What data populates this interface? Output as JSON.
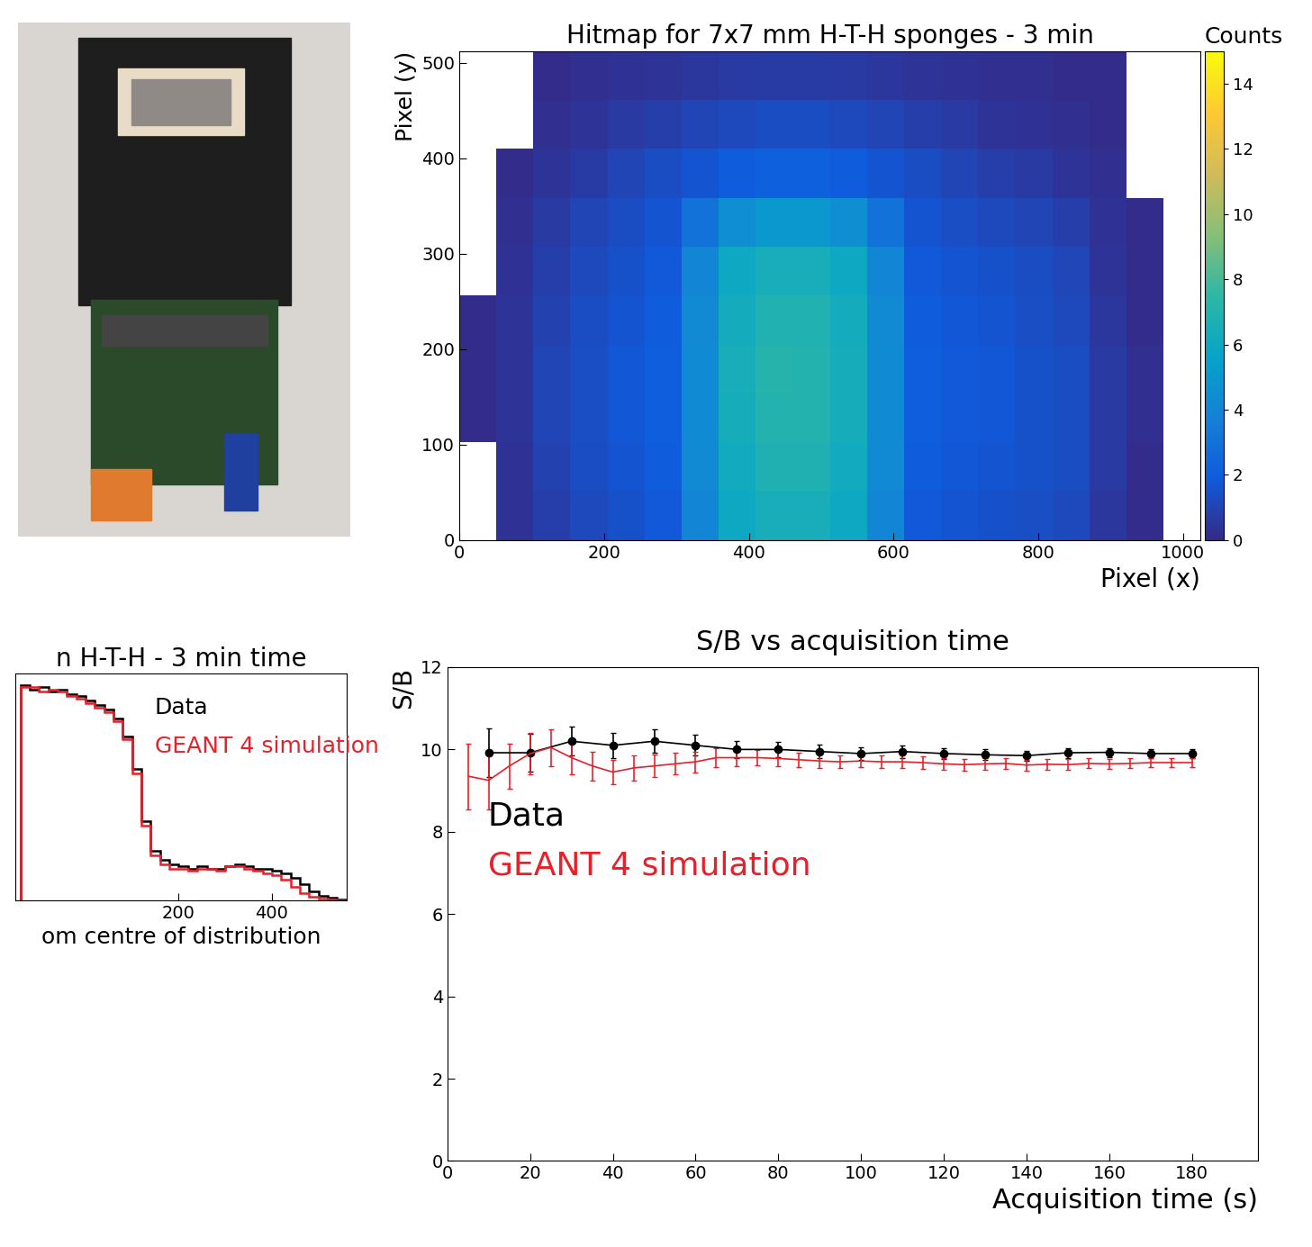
{
  "chart_data": [
    {
      "type": "heatmap",
      "title": "Hitmap for 7x7 mm H-T-H sponges - 3 min",
      "x_label": "Pixel (x)",
      "y_label": "Pixel (y)",
      "xbins": [
        0,
        51.2,
        102.4,
        153.6,
        204.8,
        256,
        307.2,
        358.4,
        409.6,
        460.8,
        512,
        563.2,
        614.4,
        665.6,
        716.8,
        768,
        819.2,
        870.4,
        921.6,
        972.8,
        1024
      ],
      "ybins": [
        0,
        51.2,
        102.4,
        153.6,
        204.8,
        256,
        307.2,
        358.4,
        409.6,
        460.8,
        512
      ],
      "cells": [
        [
          0,
          0.3,
          0.8,
          1.2,
          1.5,
          1.8,
          4.0,
          6.0,
          6.5,
          6.5,
          6.0,
          4.0,
          1.8,
          1.6,
          1.5,
          1.4,
          1.2,
          0.5,
          0.1,
          0
        ],
        [
          0,
          0.3,
          0.9,
          1.3,
          1.6,
          1.9,
          4.2,
          6.2,
          6.8,
          6.8,
          6.2,
          4.2,
          1.9,
          1.7,
          1.6,
          1.5,
          1.3,
          0.6,
          0.1,
          0
        ],
        [
          0.1,
          0.4,
          1.0,
          1.4,
          1.7,
          2.0,
          4.3,
          6.4,
          7.0,
          7.0,
          6.4,
          4.3,
          2.0,
          1.8,
          1.7,
          1.5,
          1.3,
          0.6,
          0.2,
          0
        ],
        [
          0.1,
          0.4,
          1.0,
          1.4,
          1.7,
          2.0,
          4.3,
          6.5,
          7.1,
          7.0,
          6.4,
          4.3,
          2.0,
          1.8,
          1.7,
          1.5,
          1.3,
          0.6,
          0.2,
          0
        ],
        [
          0.1,
          0.4,
          0.9,
          1.3,
          1.6,
          1.9,
          4.2,
          6.3,
          6.9,
          6.9,
          6.3,
          4.2,
          1.9,
          1.7,
          1.6,
          1.4,
          1.2,
          0.5,
          0.1,
          0
        ],
        [
          0,
          0.3,
          0.8,
          1.2,
          1.5,
          1.8,
          4.0,
          6.0,
          6.5,
          6.5,
          6.0,
          4.0,
          1.8,
          1.6,
          1.5,
          1.3,
          1.1,
          0.4,
          0.1,
          0
        ],
        [
          0,
          0.2,
          0.6,
          1.0,
          1.3,
          1.6,
          3.0,
          4.5,
          5.0,
          5.0,
          4.5,
          3.0,
          1.6,
          1.4,
          1.2,
          1.0,
          0.8,
          0.3,
          0.1,
          0
        ],
        [
          0,
          0.1,
          0.4,
          0.7,
          1.0,
          1.3,
          1.6,
          1.9,
          2.1,
          2.1,
          1.9,
          1.6,
          1.3,
          1.0,
          0.8,
          0.6,
          0.4,
          0.2,
          0,
          0
        ],
        [
          0,
          0,
          0.2,
          0.4,
          0.6,
          0.8,
          1.0,
          1.2,
          1.3,
          1.3,
          1.2,
          1.0,
          0.8,
          0.6,
          0.4,
          0.3,
          0.2,
          0.1,
          0,
          0
        ],
        [
          0,
          0,
          0.1,
          0.2,
          0.3,
          0.4,
          0.5,
          0.6,
          0.7,
          0.7,
          0.6,
          0.5,
          0.4,
          0.3,
          0.2,
          0.2,
          0.1,
          0.1,
          0,
          0
        ]
      ],
      "xlim": [
        0,
        1024
      ],
      "ylim": [
        0,
        512
      ],
      "xticks": [
        0,
        200,
        400,
        600,
        800,
        1000
      ],
      "yticks": [
        0,
        100,
        200,
        300,
        400,
        500
      ],
      "colorbar_label": "Counts",
      "colorbar_range": [
        0,
        15
      ],
      "colorbar_ticks": [
        0,
        2,
        4,
        6,
        8,
        10,
        12,
        14
      ]
    },
    {
      "type": "histogram",
      "title": "n H-T-H - 3 min time",
      "x_label": "om centre of distribution",
      "bins": [
        -140,
        -120,
        -100,
        -80,
        -60,
        -40,
        -20,
        0,
        20,
        40,
        60,
        80,
        100,
        120,
        140,
        160,
        180,
        200,
        220,
        240,
        260,
        280,
        300,
        320,
        340,
        360,
        380,
        400,
        420,
        440,
        460,
        480,
        500,
        520,
        540,
        560
      ],
      "series": [
        {
          "name": "Data",
          "color": "#000000",
          "values": [
            95,
            93,
            94,
            92,
            93,
            91,
            90,
            88,
            86,
            84,
            80,
            72,
            58,
            35,
            22,
            18,
            16,
            15,
            14,
            15,
            14,
            14,
            15,
            16,
            15,
            14,
            14,
            13,
            12,
            10,
            7,
            4,
            2,
            1,
            0.5
          ]
        },
        {
          "name": "GEANT 4 simulation",
          "color": "#e8202a",
          "values": [
            94,
            94,
            92,
            93,
            92,
            90,
            89,
            87,
            85,
            83,
            79,
            71,
            56,
            33,
            20,
            16,
            14,
            14,
            13,
            14,
            14,
            13,
            15,
            15,
            14,
            13,
            12,
            11,
            9,
            6,
            3,
            1.5,
            0.8,
            0.3,
            0.1
          ]
        }
      ],
      "xlim": [
        -150,
        560
      ],
      "ylim": [
        0,
        100
      ],
      "xticks": [
        200,
        400
      ],
      "tick_labels": "x"
    },
    {
      "type": "line",
      "title": "S/B vs acquisition time",
      "x_label": "Acquisition time (s)",
      "y_label": "S/B",
      "series": [
        {
          "name": "Data",
          "color": "#000000",
          "marker": "circle",
          "line_style": "solid",
          "x": [
            10,
            20,
            30,
            40,
            50,
            60,
            70,
            80,
            90,
            100,
            110,
            120,
            130,
            140,
            150,
            160,
            170,
            180
          ],
          "values": [
            9.92,
            9.92,
            10.2,
            10.1,
            10.2,
            10.1,
            10.0,
            10.0,
            9.95,
            9.9,
            9.95,
            9.9,
            9.87,
            9.85,
            9.92,
            9.93,
            9.9,
            9.9
          ],
          "errors": [
            0.6,
            0.45,
            0.35,
            0.3,
            0.28,
            0.25,
            0.2,
            0.18,
            0.17,
            0.16,
            0.15,
            0.14,
            0.13,
            0.12,
            0.12,
            0.11,
            0.11,
            0.1
          ]
        },
        {
          "name": "GEANT 4 simulation",
          "color": "#e8202a",
          "marker": "none",
          "line_style": "solid",
          "x": [
            5,
            10,
            15,
            20,
            25,
            30,
            35,
            40,
            45,
            50,
            55,
            60,
            65,
            70,
            75,
            80,
            85,
            90,
            95,
            100,
            105,
            110,
            115,
            120,
            125,
            130,
            135,
            140,
            145,
            150,
            155,
            160,
            165,
            170,
            175,
            180
          ],
          "values": [
            9.35,
            9.25,
            9.6,
            9.9,
            10.05,
            9.8,
            9.6,
            9.45,
            9.55,
            9.6,
            9.65,
            9.7,
            9.8,
            9.8,
            9.8,
            9.78,
            9.75,
            9.72,
            9.7,
            9.72,
            9.7,
            9.7,
            9.68,
            9.65,
            9.63,
            9.65,
            9.66,
            9.62,
            9.64,
            9.63,
            9.66,
            9.65,
            9.66,
            9.68,
            9.68,
            9.68
          ],
          "errors": [
            0.8,
            0.7,
            0.55,
            0.5,
            0.45,
            0.4,
            0.35,
            0.3,
            0.3,
            0.28,
            0.26,
            0.25,
            0.22,
            0.2,
            0.18,
            0.18,
            0.17,
            0.17,
            0.16,
            0.16,
            0.15,
            0.15,
            0.15,
            0.14,
            0.14,
            0.14,
            0.13,
            0.13,
            0.13,
            0.13,
            0.12,
            0.12,
            0.12,
            0.12,
            0.12,
            0.12
          ]
        }
      ],
      "xlim": [
        0,
        196
      ],
      "ylim": [
        0,
        12
      ],
      "xticks": [
        0,
        20,
        40,
        60,
        80,
        100,
        120,
        140,
        160,
        180
      ],
      "yticks": [
        0,
        2,
        4,
        6,
        8,
        10,
        12
      ]
    }
  ]
}
